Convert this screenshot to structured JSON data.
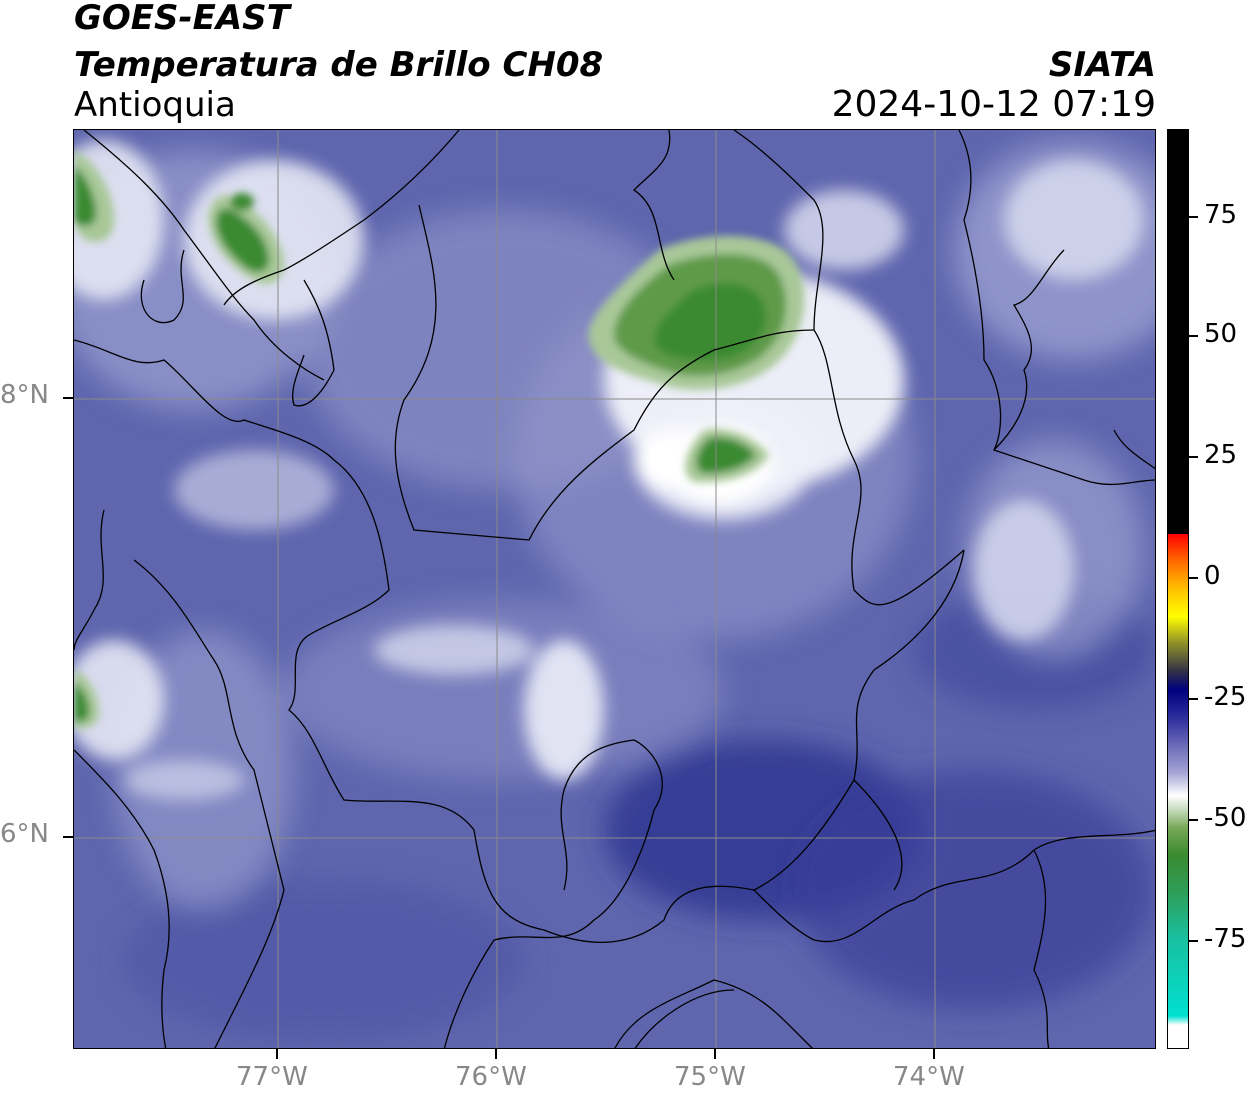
{
  "header": {
    "title_line1": "GOES-EAST",
    "title_line2": "Temperatura de Brillo CH08",
    "region": "Antioquia",
    "brand": "SIATA",
    "datetime": "2024-10-12 07:19"
  },
  "map": {
    "longitude_labels": [
      "77°W",
      "76°W",
      "75°W",
      "74°W"
    ],
    "latitude_labels": [
      "8°N",
      "6°N"
    ],
    "gridlines": true,
    "base_color": "#5c64ac",
    "cloud_color": "#ffffff",
    "cold_top_color": "#3a8a30"
  },
  "colorbar": {
    "tick_labels": [
      "75",
      "50",
      "25",
      "0",
      "-25",
      "-50",
      "-75"
    ],
    "colors": [
      "#000000",
      "#ff0000",
      "#ffff00",
      "#000080",
      "#ffffff",
      "#3a8a30",
      "#00e0d0"
    ]
  }
}
